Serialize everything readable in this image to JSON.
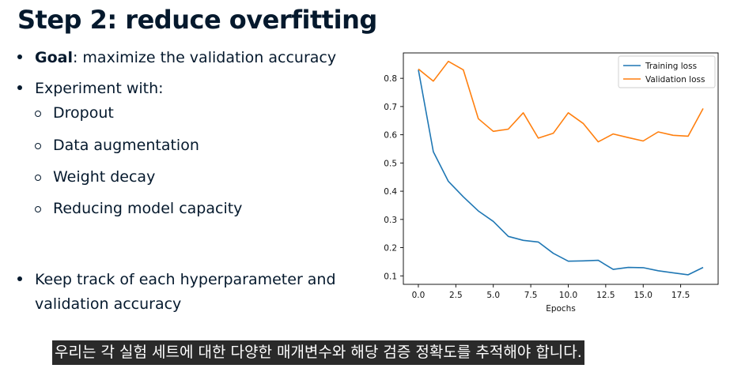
{
  "slide": {
    "title": "Step 2: reduce overfitting",
    "bullet1": {
      "bold": "Goal",
      "rest": ": maximize the validation accuracy"
    },
    "bullet2": "Experiment with:",
    "sub_bullets": [
      "Dropout",
      "Data augmentation",
      "Weight decay",
      "Reducing model capacity"
    ],
    "bullet3": [
      "Keep track of each hyperparameter and",
      "validation accuracy"
    ]
  },
  "subtitle": "우리는 각 실험 세트에 대한 다양한 매개변수와 해당 검증 정확도를 추적해야 합니다.",
  "chart_data": {
    "type": "line",
    "x": [
      0,
      1,
      2,
      3,
      4,
      5,
      6,
      7,
      8,
      9,
      10,
      11,
      12,
      13,
      14,
      15,
      16,
      17,
      18,
      19
    ],
    "xlabel": "Epochs",
    "ylabel": "",
    "xlim": [
      -1,
      20
    ],
    "ylim": [
      0.07,
      0.89
    ],
    "xticks": [
      0.0,
      2.5,
      5.0,
      7.5,
      10.0,
      12.5,
      15.0,
      17.5
    ],
    "xtick_labels": [
      "0.0",
      "2.5",
      "5.0",
      "7.5",
      "10.0",
      "12.5",
      "15.0",
      "17.5"
    ],
    "yticks": [
      0.1,
      0.2,
      0.3,
      0.4,
      0.5,
      0.6,
      0.7,
      0.8
    ],
    "ytick_labels": [
      "0.1",
      "0.2",
      "0.3",
      "0.4",
      "0.5",
      "0.6",
      "0.7",
      "0.8"
    ],
    "grid": false,
    "legend": "top-right",
    "series": [
      {
        "name": "Training loss",
        "color": "#1f77b4",
        "values": [
          0.83,
          0.54,
          0.435,
          0.38,
          0.33,
          0.293,
          0.24,
          0.226,
          0.22,
          0.18,
          0.152,
          0.153,
          0.155,
          0.123,
          0.13,
          0.129,
          0.118,
          0.111,
          0.104,
          0.13
        ]
      },
      {
        "name": "Validation loss",
        "color": "#ff7f0e",
        "values": [
          0.833,
          0.79,
          0.86,
          0.83,
          0.657,
          0.612,
          0.62,
          0.678,
          0.588,
          0.605,
          0.678,
          0.64,
          0.575,
          0.603,
          0.59,
          0.578,
          0.61,
          0.598,
          0.595,
          0.693
        ]
      }
    ]
  }
}
